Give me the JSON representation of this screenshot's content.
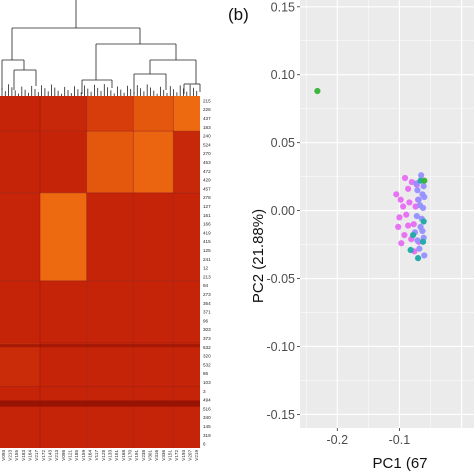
{
  "page": {
    "title": ""
  },
  "chart_data": [
    {
      "type": "heatmap",
      "panel_label": "",
      "title": "",
      "colors": {
        "low": "#c01d08",
        "mid": "#d8400b",
        "high": "#f77c12",
        "dark": "#8e1004",
        "dendrogram": "#222222"
      },
      "row_labels": [
        "215",
        "226",
        "437",
        "183",
        "240",
        "524",
        "270",
        "453",
        "472",
        "429",
        "457",
        "278",
        "127",
        "161",
        "166",
        "419",
        "415",
        "125",
        "241",
        "12",
        "213",
        "94",
        "273",
        "364",
        "371",
        "96",
        "303",
        "373",
        "532",
        "320",
        "532",
        "86",
        "103",
        "3",
        "494",
        "516",
        "340",
        "145",
        "319",
        "6"
      ],
      "col_labels": [
        "V093",
        "V213",
        "V155",
        "V183",
        "V164",
        "V217",
        "V172",
        "V143",
        "V213",
        "V098",
        "V121",
        "V185",
        "V159",
        "V164",
        "V117",
        "V128",
        "V133",
        "V151",
        "V168",
        "V170",
        "V191",
        "V238",
        "V301",
        "V316",
        "V336",
        "V151",
        "V172",
        "V193",
        "V207",
        "V219"
      ],
      "col_groups": [
        {
          "from": 0,
          "to": 6
        },
        {
          "from": 6,
          "to": 13
        },
        {
          "from": 13,
          "to": 20
        },
        {
          "from": 20,
          "to": 26
        },
        {
          "from": 26,
          "to": 30
        }
      ],
      "row_groups": [
        {
          "from": 0,
          "to": 4
        },
        {
          "from": 4,
          "to": 11
        },
        {
          "from": 11,
          "to": 21
        },
        {
          "from": 21,
          "to": 28
        },
        {
          "from": 28,
          "to": 33
        },
        {
          "from": 33,
          "to": 40
        }
      ],
      "block_levels": [
        [
          0.1,
          0.15,
          0.45,
          0.7,
          0.85
        ],
        [
          0.1,
          0.1,
          0.7,
          0.8,
          0.15
        ],
        [
          0.12,
          0.85,
          0.1,
          0.1,
          0.1
        ],
        [
          0.1,
          0.1,
          0.1,
          0.1,
          0.1
        ],
        [
          0.2,
          0.1,
          0.1,
          0.1,
          0.1
        ],
        [
          0.1,
          0.1,
          0.1,
          0.1,
          0.1
        ]
      ]
    },
    {
      "type": "scatter",
      "panel_label": "(b)",
      "title": "",
      "xlabel": "PC1 (67",
      "ylabel": "PC2 (21.88%)",
      "xlim": [
        -0.26,
        0.02
      ],
      "ylim": [
        -0.16,
        0.155
      ],
      "x_ticks": [
        -0.2,
        -0.1
      ],
      "x_tick_labels": [
        "-0.2",
        "-0.1"
      ],
      "y_ticks": [
        -0.15,
        -0.1,
        -0.05,
        0.0,
        0.05,
        0.1,
        0.15
      ],
      "y_tick_labels": [
        "-0.15",
        "-0.10",
        "-0.05",
        "0.00",
        "0.05",
        "0.10",
        "0.15"
      ],
      "grid": true,
      "legend": "none",
      "panel_background": "#ebebeb",
      "grid_color": "#ffffff",
      "series": [
        {
          "color": "#e76bf3",
          "points": [
            [
              -0.105,
              0.012
            ],
            [
              -0.1,
              -0.005
            ],
            [
              -0.092,
              -0.018
            ],
            [
              -0.098,
              0.008
            ],
            [
              -0.086,
              0.016
            ],
            [
              -0.08,
              0.021
            ],
            [
              -0.102,
              -0.012
            ],
            [
              -0.094,
              0.003
            ],
            [
              -0.089,
              -0.003
            ],
            [
              -0.081,
              -0.021
            ],
            [
              -0.077,
              -0.01
            ],
            [
              -0.072,
              0.019
            ],
            [
              -0.069,
              -0.023
            ],
            [
              -0.084,
              0.006
            ],
            [
              -0.097,
              -0.024
            ],
            [
              -0.091,
              0.024
            ],
            [
              -0.076,
              -0.03
            ],
            [
              -0.086,
              -0.011
            ],
            [
              -0.074,
              0.003
            ],
            [
              -0.07,
              0.008
            ]
          ]
        },
        {
          "color": "#9590ff",
          "points": [
            [
              -0.072,
              -0.004
            ],
            [
              -0.069,
              0.008
            ],
            [
              -0.066,
              -0.012
            ],
            [
              -0.063,
              0.012
            ],
            [
              -0.061,
              -0.02
            ],
            [
              -0.071,
              0.015
            ],
            [
              -0.068,
              -0.028
            ],
            [
              -0.062,
              0.002
            ],
            [
              -0.06,
              -0.033
            ],
            [
              -0.065,
              0.026
            ],
            [
              -0.075,
              -0.016
            ],
            [
              -0.073,
              0.02
            ],
            [
              -0.064,
              -0.006
            ],
            [
              -0.061,
              0.018
            ],
            [
              -0.067,
              0.004
            ],
            [
              -0.063,
              -0.015
            ],
            [
              -0.071,
              -0.022
            ],
            [
              -0.06,
              0.01
            ]
          ]
        },
        {
          "color": "#1fa8a8",
          "points": [
            [
              -0.078,
              -0.018
            ],
            [
              -0.066,
              0.022
            ],
            [
              -0.062,
              -0.023
            ],
            [
              -0.082,
              -0.029
            ],
            [
              -0.061,
              -0.008
            ],
            [
              -0.07,
              -0.035
            ]
          ]
        },
        {
          "color": "#35b234",
          "points": [
            [
              -0.232,
              0.088
            ],
            [
              -0.06,
              0.022
            ]
          ]
        }
      ]
    }
  ]
}
